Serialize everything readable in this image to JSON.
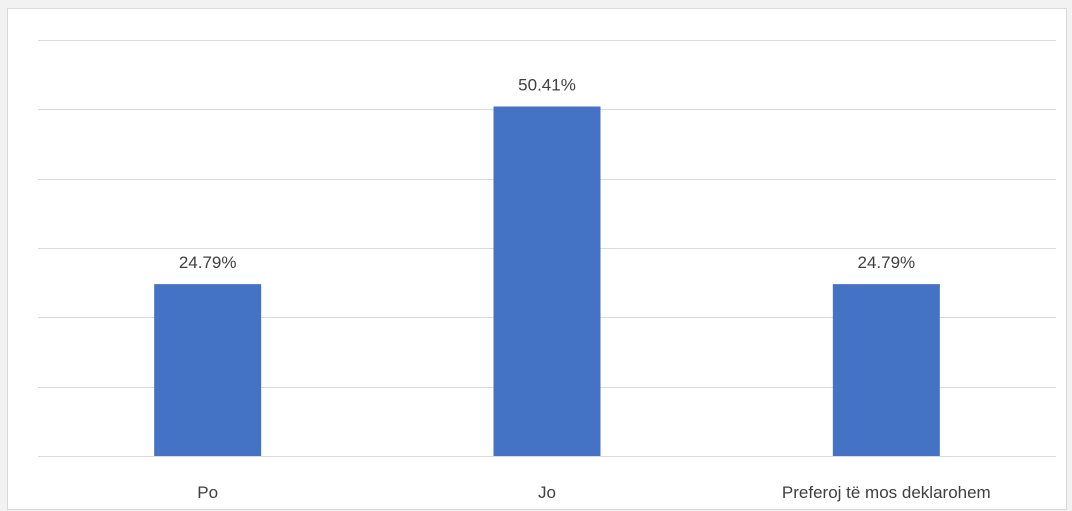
{
  "chart_data": {
    "type": "bar",
    "categories": [
      "Po",
      "Jo",
      "Preferoj të mos deklarohem"
    ],
    "values": [
      24.79,
      50.41,
      24.79
    ],
    "data_labels": [
      "24.79%",
      "50.41%",
      "24.79%"
    ],
    "ylim": [
      0,
      60
    ],
    "y_gridlines": [
      0,
      10,
      20,
      30,
      40,
      50,
      60
    ],
    "grid": true,
    "legend": "none",
    "bar_color": "#4472c4"
  }
}
